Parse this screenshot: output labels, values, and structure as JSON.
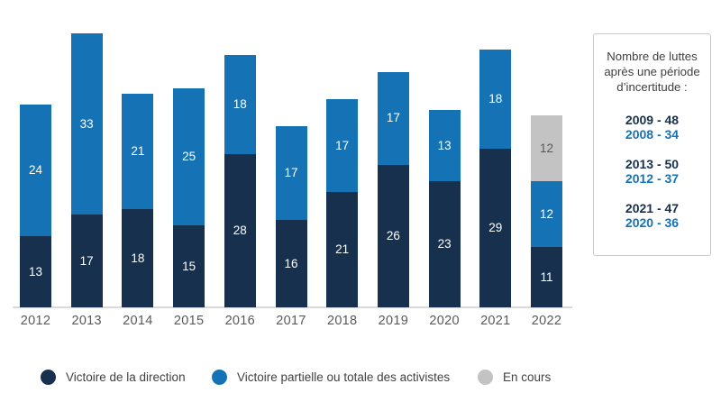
{
  "chart_data": {
    "type": "bar",
    "stacked": true,
    "title": "",
    "categories": [
      "2012",
      "2013",
      "2014",
      "2015",
      "2016",
      "2017",
      "2018",
      "2019",
      "2020",
      "2021",
      "2022"
    ],
    "series": [
      {
        "name": "Victoire de la direction",
        "color": "#16304E",
        "label_color": "#FFFFFF",
        "values": [
          13,
          17,
          18,
          15,
          28,
          16,
          21,
          26,
          23,
          29,
          11
        ]
      },
      {
        "name": "Victoire partielle ou totale des activistes",
        "color": "#1573B5",
        "label_color": "#FFFFFF",
        "values": [
          24,
          33,
          21,
          25,
          18,
          17,
          17,
          17,
          13,
          18,
          12
        ]
      },
      {
        "name": "En cours",
        "color": "#C3C3C3",
        "label_color": "#58595B",
        "values": [
          null,
          null,
          null,
          null,
          null,
          null,
          null,
          null,
          null,
          null,
          12
        ]
      }
    ],
    "totals": [
      37,
      50,
      39,
      40,
      46,
      33,
      38,
      43,
      36,
      47,
      35
    ],
    "value_labels_shown": true,
    "legend_position": "bottom",
    "grid": false,
    "axis": {
      "x_labels_color": "#58595B",
      "baseline_color": "#DADADA",
      "y_axis_shown": false
    }
  },
  "legend": {
    "items": [
      {
        "label": "Victoire de la direction",
        "color": "#16304E"
      },
      {
        "label": "Victoire partielle ou totale des activistes",
        "color": "#1573B5"
      },
      {
        "label": "En cours",
        "color": "#C3C3C3"
      }
    ]
  },
  "side_panel": {
    "title_lines": [
      "Nombre de luttes",
      "après une période",
      "d’incertitude :"
    ],
    "pairs": [
      {
        "primary": "2009 - 48",
        "secondary": "2008 - 34"
      },
      {
        "primary": "2013 - 50",
        "secondary": "2012 - 37"
      },
      {
        "primary": "2021 - 47",
        "secondary": "2020 - 36"
      }
    ],
    "primary_color": "#16304E",
    "secondary_color": "#1573B5"
  }
}
